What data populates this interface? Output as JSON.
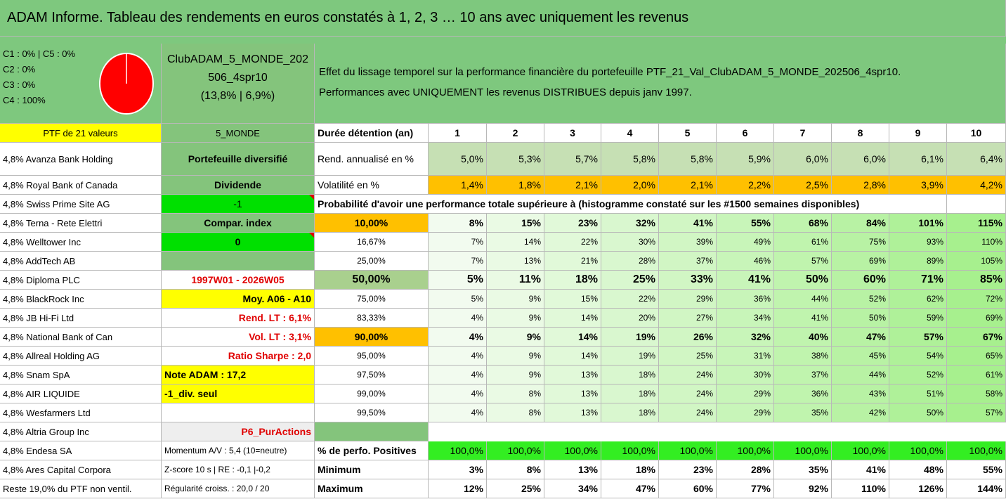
{
  "header": {
    "title": "ADAM Informe. Tableau des rendements en euros constatés à 1, 2, 3 … 10 ans avec uniquement les revenus"
  },
  "summary": {
    "composition": [
      "C1 : 0% | C5 : 0%",
      "C2 : 0%",
      "C3 : 0%",
      "C4 : 100%"
    ],
    "fund": "ClubADAM_5_MONDE_202506_4spr10",
    "fund_stats": "(13,8% | 6,9%)",
    "description": [
      "Effet du lissage temporel sur la performance financière du portefeuille PTF_21_Val_ClubADAM_5_MONDE_202506_4spr10.",
      "Performances avec UNIQUEMENT les revenus DISTRIBUES depuis janv 1997."
    ]
  },
  "table": {
    "col_a": [
      "PTF de 21 valeurs",
      "4,8% Avanza Bank Holding",
      "4,8% Royal Bank of Canada",
      "4,8% Swiss Prime Site AG",
      "4,8% Terna - Rete Elettri",
      "4,8% Welltower Inc",
      "4,8% AddTech AB",
      "4,8% Diploma PLC",
      "4,8% BlackRock Inc",
      "4,8% JB Hi-Fi Ltd",
      "4,8% National Bank of Can",
      "4,8% Allreal Holding AG",
      "4,8% Snam SpA",
      "4,8% AIR LIQUIDE",
      "4,8% Wesfarmers Ltd",
      "4,8% Altria Group Inc",
      "4,8% Endesa SA",
      "4,8% Ares Capital Corpora",
      "Reste 19,0% du PTF non ventil."
    ],
    "col_b": [
      "5_MONDE",
      "Portefeuille diversifié",
      "Dividende",
      "-1",
      "Compar. index",
      "0",
      null,
      "1997W01 - 2026W05",
      "Moy. A06 - A10",
      "Rend. LT : 6,1%",
      "Vol. LT : 3,1%",
      "Ratio Sharpe : 2,0",
      "Note ADAM : 17,2",
      "-1_div. seul",
      null,
      "P6_PurActions",
      "Momentum A/V : 5,4 (10=neutre)",
      "Z-score 10 s | RE : -0,1 |-0,2",
      "Régularité croiss. : 20,0 / 20"
    ],
    "right": [
      {
        "label": "Durée détention (an)",
        "values": [
          1,
          2,
          3,
          4,
          5,
          6,
          7,
          8,
          9,
          10
        ]
      },
      {
        "label": "Rend. annualisé en %",
        "values": [
          "5,0%",
          "5,3%",
          "5,7%",
          "5,8%",
          "5,8%",
          "5,9%",
          "6,0%",
          "6,0%",
          "6,1%",
          "6,4%"
        ]
      },
      {
        "label": "Volatilité en %",
        "values": [
          "1,4%",
          "1,8%",
          "2,1%",
          "2,0%",
          "2,1%",
          "2,2%",
          "2,5%",
          "2,8%",
          "3,9%",
          "4,2%"
        ]
      },
      {
        "label": "Probabilité d'avoir une performance totale supérieure à (histogramme constaté sur les #1500 semaines disponibles)"
      },
      {
        "label": "10,00%",
        "values": [
          "8%",
          "15%",
          "23%",
          "32%",
          "41%",
          "55%",
          "68%",
          "84%",
          "101%",
          "115%"
        ]
      },
      {
        "label": "16,67%",
        "values": [
          "7%",
          "14%",
          "22%",
          "30%",
          "39%",
          "49%",
          "61%",
          "75%",
          "93%",
          "110%"
        ]
      },
      {
        "label": "25,00%",
        "values": [
          "7%",
          "13%",
          "21%",
          "28%",
          "37%",
          "46%",
          "57%",
          "69%",
          "89%",
          "105%"
        ]
      },
      {
        "label": "50,00%",
        "values": [
          "5%",
          "11%",
          "18%",
          "25%",
          "33%",
          "41%",
          "50%",
          "60%",
          "71%",
          "85%"
        ]
      },
      {
        "label": "75,00%",
        "values": [
          "5%",
          "9%",
          "15%",
          "22%",
          "29%",
          "36%",
          "44%",
          "52%",
          "62%",
          "72%"
        ]
      },
      {
        "label": "83,33%",
        "values": [
          "4%",
          "9%",
          "14%",
          "20%",
          "27%",
          "34%",
          "41%",
          "50%",
          "59%",
          "69%"
        ]
      },
      {
        "label": "90,00%",
        "values": [
          "4%",
          "9%",
          "14%",
          "19%",
          "26%",
          "32%",
          "40%",
          "47%",
          "57%",
          "67%"
        ]
      },
      {
        "label": "95,00%",
        "values": [
          "4%",
          "9%",
          "14%",
          "19%",
          "25%",
          "31%",
          "38%",
          "45%",
          "54%",
          "65%"
        ]
      },
      {
        "label": "97,50%",
        "values": [
          "4%",
          "9%",
          "13%",
          "18%",
          "24%",
          "30%",
          "37%",
          "44%",
          "52%",
          "61%"
        ]
      },
      {
        "label": "99,00%",
        "values": [
          "4%",
          "8%",
          "13%",
          "18%",
          "24%",
          "29%",
          "36%",
          "43%",
          "51%",
          "58%"
        ]
      },
      {
        "label": "99,50%",
        "values": [
          "4%",
          "8%",
          "13%",
          "18%",
          "24%",
          "29%",
          "35%",
          "42%",
          "50%",
          "57%"
        ]
      },
      null,
      {
        "label": "% de perfo. Positives",
        "values": [
          "100,0%",
          "100,0%",
          "100,0%",
          "100,0%",
          "100,0%",
          "100,0%",
          "100,0%",
          "100,0%",
          "100,0%",
          "100,0%"
        ]
      },
      {
        "label": "Minimum",
        "values": [
          "3%",
          "8%",
          "13%",
          "18%",
          "23%",
          "28%",
          "35%",
          "41%",
          "48%",
          "55%"
        ]
      },
      {
        "label": "Maximum",
        "values": [
          "12%",
          "25%",
          "34%",
          "47%",
          "60%",
          "77%",
          "92%",
          "110%",
          "126%",
          "144%"
        ]
      }
    ]
  }
}
